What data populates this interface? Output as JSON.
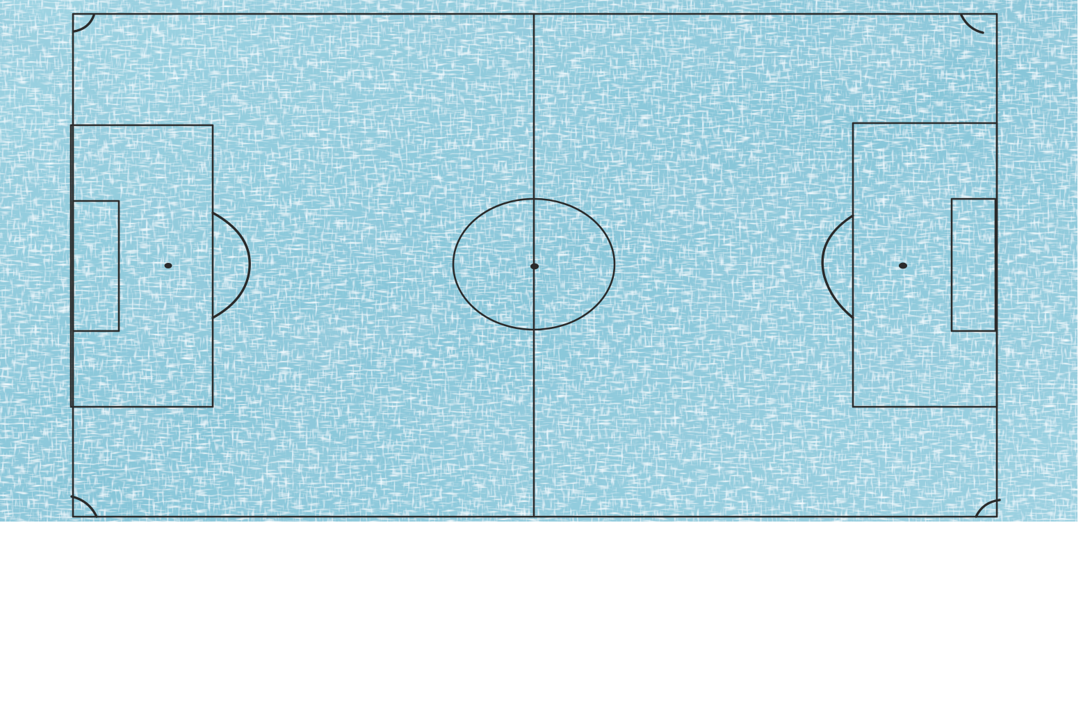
{
  "scene": {
    "surface": "ice-texture",
    "colors": {
      "page_background": "#ffffff",
      "ice_base": "#8fcbdc",
      "ice_dark": "#4d9bb6",
      "ice_light": "#e6f6fb",
      "line_color": "#2a2a2a"
    },
    "markings": [
      "touchlines",
      "goal-lines",
      "halfway-line",
      "center-circle",
      "center-spot",
      "left-penalty-area",
      "left-goal-area",
      "left-penalty-spot",
      "left-penalty-arc",
      "right-penalty-area",
      "right-goal-area",
      "right-penalty-spot",
      "right-penalty-arc",
      "corner-arcs"
    ]
  }
}
